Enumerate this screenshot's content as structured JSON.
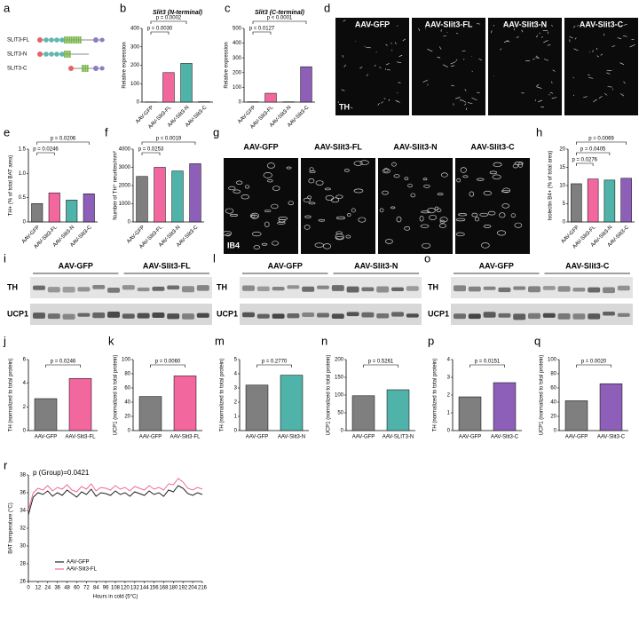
{
  "diagram": {
    "panel": "a",
    "constructs": [
      "SLIT3-FL",
      "SLIT3-N",
      "SLIT3-C"
    ]
  },
  "micrographs": [
    {
      "panel": "d",
      "labels": [
        "AAV-GFP",
        "AAV-Slit3-FL",
        "AAV-Slit3-N",
        "AAV-Slit3-C"
      ],
      "stain": "TH"
    },
    {
      "panel": "g",
      "labels": [
        "AAV-GFP",
        "AAV-Slit3-FL",
        "AAV-Slit3-N",
        "AAV-Slit3-C"
      ],
      "stain": "IB4"
    }
  ],
  "blots": [
    {
      "panel": "i",
      "groups": [
        "AAV-GFP",
        "AAV-Slit3-FL"
      ],
      "rows": [
        "TH",
        "UCP1"
      ]
    },
    {
      "panel": "l",
      "groups": [
        "AAV-GFP",
        "AAV-Slit3-N"
      ],
      "rows": [
        "TH",
        "UCP1"
      ]
    },
    {
      "panel": "o",
      "groups": [
        "AAV-GFP",
        "AAV-Slit3-C"
      ],
      "rows": [
        "TH",
        "UCP1"
      ]
    }
  ],
  "chart_data": [
    {
      "type": "bar",
      "panel": "b",
      "title": "Slit3 (N-terminal)",
      "y_label": "Relative expression",
      "categories": [
        "AAV-GFP",
        "AAV-Slit3-FL",
        "AAV-Slit3-N",
        "AAV-Slit3-C"
      ],
      "values": [
        1,
        160,
        210,
        2
      ],
      "colors": [
        "#7f7f7f",
        "#f2679d",
        "#4fb3a9",
        "#8e5fb8"
      ],
      "ylim": [
        0,
        400
      ],
      "yticks": [
        0,
        100,
        200,
        300,
        400
      ],
      "annotations": [
        "p = 0.0002",
        "p = 0.0030"
      ]
    },
    {
      "type": "bar",
      "panel": "c",
      "title": "Slit3 (C-terminal)",
      "y_label": "Relative expression",
      "categories": [
        "AAV-GFP",
        "AAV-Slit3-FL",
        "AAV-Slit3-N",
        "AAV-Slit3-C"
      ],
      "values": [
        2,
        60,
        2,
        240
      ],
      "colors": [
        "#7f7f7f",
        "#f2679d",
        "#4fb3a9",
        "#8e5fb8"
      ],
      "ylim": [
        0,
        500
      ],
      "yticks": [
        0,
        100,
        200,
        300,
        400,
        500
      ],
      "annotations": [
        "p < 0.0001",
        "p = 0.0127"
      ]
    },
    {
      "type": "bar",
      "panel": "e",
      "y_label": "TH+ (% of total BAT area)",
      "categories": [
        "AAV-GFP",
        "AAV-Slit3-FL",
        "AAV-Slit3-N",
        "AAV-Slit3-C"
      ],
      "values": [
        0.38,
        0.6,
        0.45,
        0.58
      ],
      "colors": [
        "#7f7f7f",
        "#f2679d",
        "#4fb3a9",
        "#8e5fb8"
      ],
      "ylim": [
        0,
        1.5
      ],
      "yticks": [
        0,
        0.5,
        {
          "value": 1,
          "label": "1.0"
        },
        1.5
      ],
      "annotations": [
        "p = 0.0206",
        "p = 0.0246"
      ]
    },
    {
      "type": "bar",
      "panel": "f",
      "y_label": "Number of TH⁺ neurites/mm²",
      "categories": [
        "AAV-GFP",
        "AAV-Slit3-FL",
        "AAV-Slit3-N",
        "AAV-Slit3-C"
      ],
      "values": [
        2500,
        3000,
        2800,
        3200
      ],
      "colors": [
        "#7f7f7f",
        "#f2679d",
        "#4fb3a9",
        "#8e5fb8"
      ],
      "ylim": [
        0,
        4000
      ],
      "yticks": [
        0,
        1000,
        2000,
        3000,
        4000
      ],
      "annotations": [
        "p = 0.0019",
        "p = 0.0253"
      ]
    },
    {
      "type": "bar",
      "panel": "h",
      "y_label": "Isolectin B4+ (% of total area)",
      "categories": [
        "AAV-GFP",
        "AAV-Slit3-FL",
        "AAV-Slit3-N",
        "AAV-Slit3-C"
      ],
      "values": [
        10.5,
        11.8,
        11.5,
        12
      ],
      "colors": [
        "#7f7f7f",
        "#f2679d",
        "#4fb3a9",
        "#8e5fb8"
      ],
      "ylim": [
        0,
        20
      ],
      "yticks": [
        0,
        5,
        10,
        15,
        20
      ],
      "annotations": [
        "p = 0.0069",
        "p = 0.0405",
        "p = 0.0276"
      ]
    },
    {
      "type": "bar",
      "panel": "j",
      "y_label": "TH (normalized to total protein)",
      "categories": [
        "AAV-GFP",
        "AAV-Slit3-FL"
      ],
      "values": [
        2.7,
        4.4
      ],
      "colors": [
        "#7f7f7f",
        "#f2679d"
      ],
      "ylim": [
        0,
        6
      ],
      "yticks": [
        0,
        2,
        4,
        6
      ],
      "annotations": [
        "p = 0.0246"
      ]
    },
    {
      "type": "bar",
      "panel": "k",
      "y_label": "UCP1 (normalized to total protein)",
      "categories": [
        "AAV-GFP",
        "AAV-Slit3-FL"
      ],
      "values": [
        48,
        77
      ],
      "colors": [
        "#7f7f7f",
        "#f2679d"
      ],
      "ylim": [
        0,
        100
      ],
      "yticks": [
        0,
        20,
        40,
        60,
        80,
        100
      ],
      "annotations": [
        "p = 0.0060"
      ]
    },
    {
      "type": "bar",
      "panel": "m",
      "y_label": "TH (normalized to total protein)",
      "categories": [
        "AAV-GFP",
        "AAV-Slit3-N"
      ],
      "values": [
        3.2,
        3.9
      ],
      "colors": [
        "#7f7f7f",
        "#4fb3a9"
      ],
      "ylim": [
        0,
        5
      ],
      "yticks": [
        0,
        1,
        2,
        3,
        4,
        5
      ],
      "annotations": [
        "p = 0.2770"
      ]
    },
    {
      "type": "bar",
      "panel": "n",
      "y_label": "UCP1 (normalized to total protein)",
      "categories": [
        "AAV-GFP",
        "AAV-SLIT3-N"
      ],
      "values": [
        98,
        115
      ],
      "colors": [
        "#7f7f7f",
        "#4fb3a9"
      ],
      "ylim": [
        0,
        200
      ],
      "yticks": [
        0,
        50,
        100,
        150,
        200
      ],
      "annotations": [
        "p = 0.5261"
      ]
    },
    {
      "type": "bar",
      "panel": "p",
      "y_label": "TH (normalized to total protein)",
      "categories": [
        "AAV-GFP",
        "AAV-Slit3-C"
      ],
      "values": [
        1.9,
        2.7
      ],
      "colors": [
        "#7f7f7f",
        "#8e5fb8"
      ],
      "ylim": [
        0,
        4
      ],
      "yticks": [
        0,
        1,
        2,
        3,
        4
      ],
      "annotations": [
        "p = 0.0151"
      ]
    },
    {
      "type": "bar",
      "panel": "q",
      "y_label": "UCP1 (normalized to total protein)",
      "categories": [
        "AAV-GFP",
        "AAV-Slit3-C"
      ],
      "values": [
        42,
        66
      ],
      "colors": [
        "#7f7f7f",
        "#8e5fb8"
      ],
      "ylim": [
        0,
        100
      ],
      "yticks": [
        0,
        20,
        40,
        60,
        80,
        100
      ],
      "annotations": [
        "p = 0.0020"
      ]
    },
    {
      "type": "line",
      "panel": "r",
      "y_label": "BAT temperature (°C)",
      "x_label": "Hours in cold (5°C)",
      "annotations": [
        "p (Group)=0.0421"
      ],
      "legend": "lower left",
      "x": [
        0,
        6,
        12,
        18,
        24,
        30,
        36,
        42,
        48,
        54,
        60,
        66,
        72,
        78,
        84,
        90,
        96,
        102,
        108,
        114,
        120,
        126,
        132,
        138,
        144,
        150,
        156,
        162,
        168,
        174,
        180,
        186,
        192,
        198,
        204,
        210,
        216
      ],
      "series": [
        {
          "name": "AAV-GFP",
          "color": "#222222",
          "values": [
            33.5,
            35.5,
            36,
            35.8,
            36.2,
            35.6,
            36,
            35.7,
            36.3,
            35.9,
            35.5,
            36.1,
            35.8,
            36.4,
            35.6,
            36,
            35.9,
            35.7,
            36.2,
            35.8,
            36,
            35.6,
            36.1,
            35.9,
            35.7,
            36.2,
            35.8,
            36,
            35.6,
            36.3,
            36.1,
            36.8,
            36.5,
            35.9,
            35.7,
            36,
            35.8
          ]
        },
        {
          "name": "AAV-Slit3-FL",
          "color": "#f2679d",
          "values": [
            34,
            36,
            36.5,
            36.3,
            36.8,
            36.2,
            36.6,
            36.4,
            36.9,
            36.3,
            36.1,
            36.7,
            36.4,
            37,
            36.2,
            36.6,
            36.5,
            36.3,
            36.8,
            36.4,
            36.6,
            36.2,
            36.7,
            36.5,
            36.3,
            36.8,
            36.4,
            36.6,
            36.3,
            37,
            36.9,
            37.6,
            37.2,
            36.5,
            36.3,
            36.6,
            36.4
          ]
        }
      ],
      "xlim": [
        0,
        216
      ],
      "xticks": [
        0,
        12,
        24,
        36,
        48,
        60,
        72,
        84,
        96,
        108,
        120,
        132,
        144,
        156,
        168,
        180,
        192,
        204,
        216
      ],
      "ylim": [
        26,
        38
      ],
      "yticks": [
        26,
        28,
        30,
        32,
        34,
        36,
        38
      ]
    }
  ]
}
